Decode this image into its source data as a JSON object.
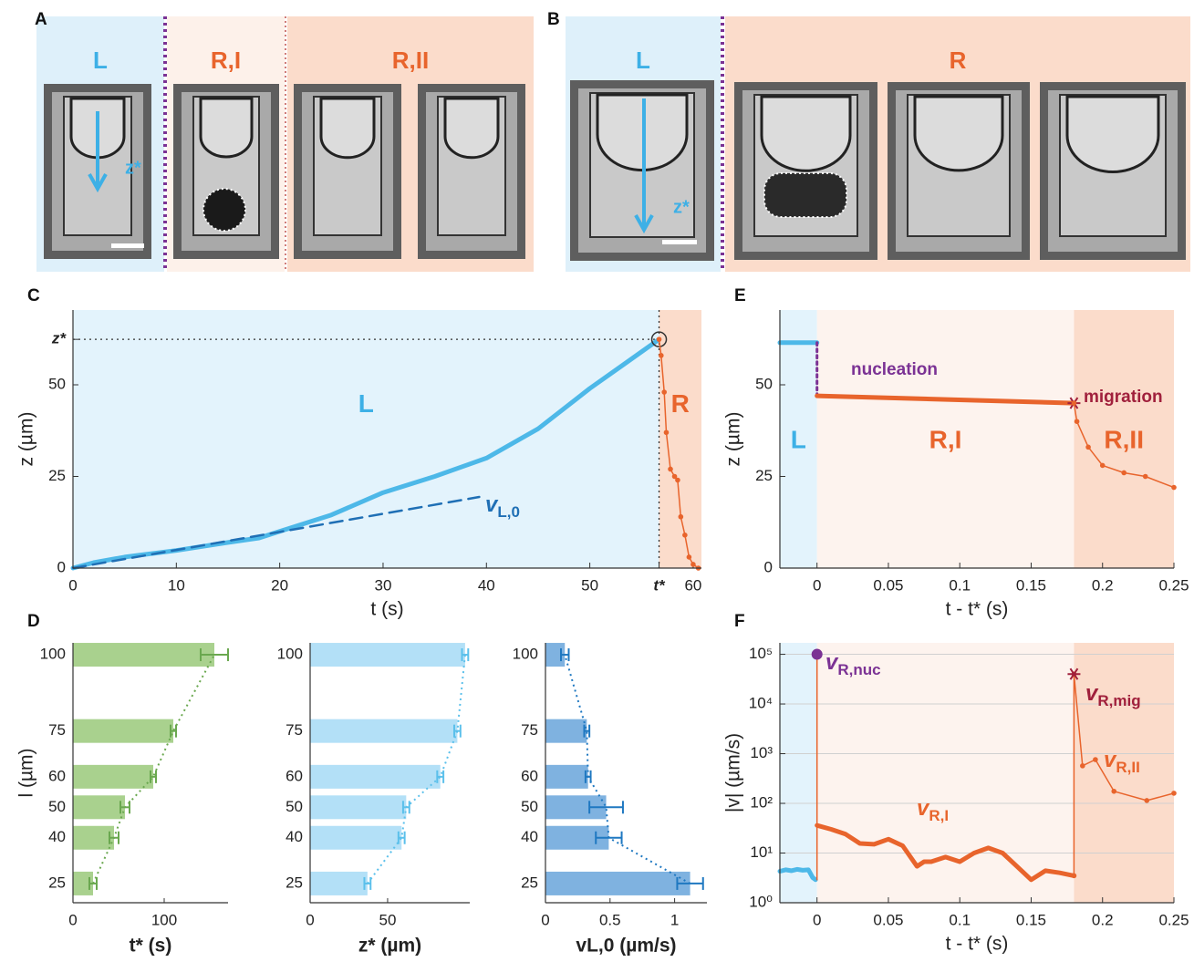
{
  "image_panels": [
    {
      "label": "A",
      "annotation": "z*",
      "regions": [
        {
          "name": "L",
          "color": "#def0fa",
          "label_color": "#3db0e6"
        },
        {
          "name": "R,I",
          "color": "#fdf1ea",
          "label_color": "#e8642c"
        },
        {
          "name": "R,II",
          "color": "#fbdccb",
          "label_color": "#e8642c"
        }
      ]
    },
    {
      "label": "B",
      "annotation": "z*",
      "regions": [
        {
          "name": "L",
          "color": "#def0fa",
          "label_color": "#3db0e6"
        },
        {
          "name": "R",
          "color": "#fbdccb",
          "label_color": "#e8642c"
        }
      ]
    }
  ],
  "chart_data": [
    {
      "type": "line",
      "panel_label": "C",
      "xlabel": "t (s)",
      "ylabel": "z (µm)",
      "xlim": [
        0,
        60.8
      ],
      "ylim": [
        0,
        70.4
      ],
      "xticks": [
        0,
        10,
        20,
        30,
        40,
        50,
        {
          "value": 56.7,
          "label": "t*",
          "color": "#8cc152"
        },
        60
      ],
      "yticks": [
        0,
        25,
        50,
        {
          "value": 62.4,
          "label": "z*",
          "color": "#3db0e6"
        }
      ],
      "guides": true,
      "regions": [
        {
          "name": "L",
          "x": [
            0,
            56.7
          ],
          "color": "#e3f3fc",
          "label_color": "#3db0e6"
        },
        {
          "name": "R",
          "x": [
            56.7,
            60.8
          ],
          "color": "#fbdccb",
          "label_color": "#e8642c"
        }
      ],
      "series": [
        {
          "color": "#4db8e8",
          "style": "thick",
          "marker": "ring",
          "marker_index": 15,
          "marker_color": "#333333",
          "x": [
            0,
            2,
            5,
            10,
            15,
            18,
            20,
            25,
            30,
            35,
            40,
            45,
            50,
            53,
            55,
            56.7
          ],
          "values": [
            0,
            1.5,
            3,
            4.8,
            7,
            8.2,
            10,
            14.5,
            20.6,
            25,
            30,
            38,
            49,
            55,
            59,
            62.4
          ]
        },
        {
          "color": "#e8642c",
          "style": "thin-dots",
          "x": [
            56.7,
            56.9,
            57.2,
            57.4,
            57.8,
            58.2,
            58.5,
            58.8,
            59.2,
            59.6,
            60,
            60.5
          ],
          "values": [
            62.4,
            58,
            48,
            37,
            27,
            25,
            24,
            14,
            9,
            3,
            1,
            0
          ]
        },
        {
          "color": "#1f6fb5",
          "style": "dashed",
          "x": [
            0,
            39.3
          ],
          "values": [
            0,
            19.4
          ]
        }
      ],
      "annotations": [
        {
          "text": "v",
          "sub": "L,0",
          "color": "#1f6fb5"
        }
      ]
    },
    {
      "type": "hbar",
      "panel_label": "D",
      "xlabel": "t* (s)",
      "ylabel": "l (µm)",
      "xlabel_color": "#8cc152",
      "color": "#a9d18e",
      "error_color": "#6aa84f",
      "trend_line": true,
      "xlim": [
        0,
        170
      ],
      "xticks": [
        0,
        100
      ],
      "ylim": [
        18.7,
        103.9
      ],
      "yticks": [
        25,
        40,
        50,
        60,
        75,
        100
      ],
      "y": [
        25,
        40,
        50,
        60,
        75,
        100
      ],
      "values": [
        22,
        45,
        57,
        88,
        110,
        155
      ],
      "errors": [
        4,
        5,
        5,
        3,
        3,
        15
      ]
    },
    {
      "type": "hbar",
      "xlabel": "z* (µm)",
      "xlabel_color": "#5bc0eb",
      "color": "#b3e0f7",
      "error_color": "#5bc0eb",
      "trend_line": true,
      "xlim": [
        0,
        103
      ],
      "xticks": [
        0,
        50
      ],
      "ylim": [
        18.7,
        103.9
      ],
      "yticks": [
        25,
        40,
        50,
        60,
        75,
        100
      ],
      "y": [
        25,
        40,
        50,
        60,
        75,
        100
      ],
      "values": [
        37,
        59,
        62,
        84,
        95,
        100
      ],
      "errors": [
        2,
        2,
        2,
        2,
        2,
        2
      ]
    },
    {
      "type": "hbar",
      "xlabel": "vL,0 (µm/s)",
      "xlabel_color": "#1f78c1",
      "color": "#7fb2e0",
      "error_color": "#1f78c1",
      "trend_line": true,
      "xlim": [
        0,
        1.25
      ],
      "xticks": [
        0,
        0.5,
        1
      ],
      "ylim": [
        18.7,
        103.9
      ],
      "yticks": [
        25,
        40,
        50,
        60,
        75,
        100
      ],
      "y": [
        25,
        40,
        50,
        60,
        75,
        100
      ],
      "values": [
        1.12,
        0.49,
        0.47,
        0.33,
        0.32,
        0.15
      ],
      "errors": [
        0.1,
        0.1,
        0.13,
        0.02,
        0.02,
        0.03
      ]
    },
    {
      "type": "line",
      "panel_label": "E",
      "xlabel": "t - t* (s)",
      "ylabel": "z (µm)",
      "xlim": [
        -0.026,
        0.25
      ],
      "ylim": [
        0,
        70.4
      ],
      "xticks": [
        0,
        0.05,
        0.1,
        0.15,
        0.2,
        0.25
      ],
      "yticks": [
        0,
        25,
        50
      ],
      "regions": [
        {
          "name": "L",
          "x": [
            -0.026,
            0
          ],
          "color": "#e3f3fc",
          "label_color": "#3db0e6"
        },
        {
          "name": "R,I",
          "x": [
            0,
            0.18
          ],
          "color": "#fdf3ee",
          "label_color": "#e8642c"
        },
        {
          "name": "R,II",
          "x": [
            0.18,
            0.25
          ],
          "color": "#fbdccb",
          "label_color": "#e8642c"
        }
      ],
      "series": [
        {
          "color": "#4db8e8",
          "style": "thick",
          "x": [
            -0.026,
            0
          ],
          "values": [
            61.5,
            61.5
          ]
        },
        {
          "color": "#7b3294",
          "style": "dotted",
          "x": [
            0,
            0
          ],
          "values": [
            61.5,
            47
          ]
        },
        {
          "color": "#e8642c",
          "style": "thick",
          "marker": "star",
          "marker_index": 1,
          "marker_color": "#a0203c",
          "x": [
            0,
            0.18
          ],
          "values": [
            47,
            45
          ]
        },
        {
          "color": "#e8642c",
          "style": "thin-dots",
          "x": [
            0.18,
            0.182,
            0.19,
            0.2,
            0.215,
            0.23,
            0.25
          ],
          "values": [
            45,
            40,
            33,
            28,
            26,
            25,
            22
          ]
        }
      ],
      "annotations": [
        {
          "text": "nucleation",
          "color": "#7b3294"
        },
        {
          "text": "migration",
          "color": "#a0203c"
        }
      ]
    },
    {
      "type": "line",
      "panel_label": "F",
      "xlabel": "t - t* (s)",
      "ylabel": "|v| (µm/s)",
      "log_y": true,
      "grid": true,
      "xlim": [
        -0.026,
        0.25
      ],
      "ylim": [
        1,
        170000
      ],
      "xticks": [
        0,
        0.05,
        0.1,
        0.15,
        0.2,
        0.25
      ],
      "yticks": [
        {
          "value": 1,
          "label": "10⁰"
        },
        {
          "value": 10,
          "label": "10¹"
        },
        {
          "value": 100,
          "label": "10²"
        },
        {
          "value": 1000,
          "label": "10³"
        },
        {
          "value": 10000,
          "label": "10⁴"
        },
        {
          "value": 100000,
          "label": "10⁵"
        }
      ],
      "regions": [
        {
          "x": [
            -0.026,
            0
          ],
          "color": "#e3f3fc"
        },
        {
          "x": [
            0,
            0.18
          ],
          "color": "#fdf3ee"
        },
        {
          "x": [
            0.18,
            0.25
          ],
          "color": "#fbdccb"
        }
      ],
      "series": [
        {
          "color": "#4db8e8",
          "style": "thick",
          "x": [
            -0.026,
            -0.022,
            -0.018,
            -0.014,
            -0.01,
            -0.006,
            -0.003,
            -0.001
          ],
          "values": [
            4.3,
            4.6,
            4.4,
            4.7,
            4.5,
            4.6,
            3.2,
            2.9
          ]
        },
        {
          "color": "#e8642c",
          "style": "thin",
          "marker": "dot",
          "marker_index": 1,
          "marker_color": "#7b3294",
          "x": [
            0,
            0,
            0
          ],
          "values": [
            2.9,
            100000,
            36
          ]
        },
        {
          "color": "#e8642c",
          "style": "thick",
          "x": [
            0,
            0.01,
            0.02,
            0.03,
            0.04,
            0.05,
            0.06,
            0.07,
            0.075,
            0.08,
            0.09,
            0.1,
            0.11,
            0.12,
            0.13,
            0.14,
            0.15,
            0.16,
            0.17,
            0.18
          ],
          "values": [
            36,
            30,
            24,
            15.6,
            15,
            19,
            14,
            5.4,
            6.7,
            6.7,
            8.3,
            6.7,
            10,
            12.7,
            10,
            5.4,
            2.9,
            4.4,
            4,
            3.5
          ]
        },
        {
          "color": "#e8642c",
          "style": "thin-dots",
          "marker": "star",
          "marker_index": 1,
          "marker_color": "#a0203c",
          "x": [
            0.18,
            0.18,
            0.186,
            0.195,
            0.208,
            0.231,
            0.25
          ],
          "values": [
            3.5,
            40000,
            570,
            760,
            175,
            114,
            160
          ]
        }
      ],
      "annotations": [
        {
          "text": "v",
          "sub": "R,nuc",
          "color": "#7b3294"
        },
        {
          "text": "v",
          "sub": "R,mig",
          "color": "#a0203c"
        },
        {
          "text": "v",
          "sub": "R,I",
          "color": "#e8642c"
        },
        {
          "text": "v",
          "sub": "R,II",
          "color": "#e8642c"
        }
      ]
    }
  ]
}
